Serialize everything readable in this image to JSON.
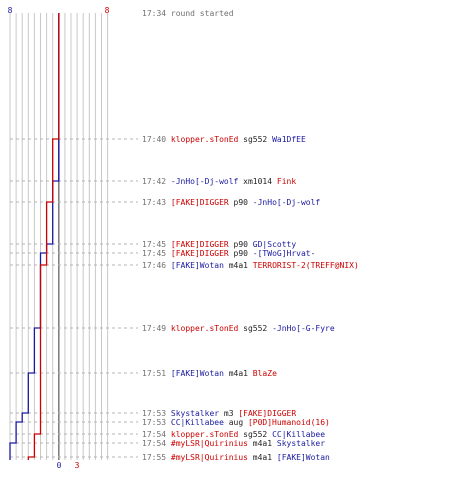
{
  "colors": {
    "blue_team": "#1a1aa0",
    "red_team": "#cc0000",
    "weapon_text": "#222222",
    "time_text": "#707070",
    "grid_minor": "#c8c8c8",
    "grid_major": "#808080",
    "dash_line": "#b4b4b4"
  },
  "scores": {
    "blue_start": "8",
    "red_start": "8",
    "blue_end": "0",
    "red_end": "3"
  },
  "chart_data": {
    "type": "step-line",
    "series": [
      {
        "team": "blue",
        "values": [
          8,
          8,
          8,
          7,
          7,
          6,
          5,
          5,
          4,
          3,
          2,
          1,
          1,
          0,
          0,
          0
        ]
      },
      {
        "team": "red",
        "values": [
          8,
          8,
          7,
          7,
          6,
          6,
          6,
          5,
          5,
          5,
          5,
          5,
          4,
          4,
          3,
          3
        ]
      }
    ]
  },
  "events": [
    {
      "time": "17:34",
      "parts": [
        {
          "text": "round started",
          "style": "gray"
        }
      ]
    },
    {
      "time": "17:40",
      "parts": [
        {
          "text": "klopper.sTonEd",
          "style": "red"
        },
        {
          "text": "sg552",
          "style": "black"
        },
        {
          "text": "Wa1DfEE",
          "style": "blue"
        }
      ]
    },
    {
      "time": "17:42",
      "parts": [
        {
          "text": "-JnHo[-Dj-wolf",
          "style": "blue"
        },
        {
          "text": "xm1014",
          "style": "black"
        },
        {
          "text": "Fink",
          "style": "red"
        }
      ]
    },
    {
      "time": "17:43",
      "parts": [
        {
          "text": "[FAKE]DIGGER",
          "style": "red"
        },
        {
          "text": "p90",
          "style": "black"
        },
        {
          "text": "-JnHo[-Dj-wolf",
          "style": "blue"
        }
      ]
    },
    {
      "time": "17:45",
      "parts": [
        {
          "text": "[FAKE]DIGGER",
          "style": "red"
        },
        {
          "text": "p90",
          "style": "black"
        },
        {
          "text": "GD|Scotty",
          "style": "blue"
        }
      ]
    },
    {
      "time": "17:45",
      "parts": [
        {
          "text": "[FAKE]DIGGER",
          "style": "red"
        },
        {
          "text": "p90",
          "style": "black"
        },
        {
          "text": "-[TWoG]Hrvat-",
          "style": "blue"
        }
      ]
    },
    {
      "time": "17:46",
      "parts": [
        {
          "text": "[FAKE]Wotan",
          "style": "blue"
        },
        {
          "text": "m4a1",
          "style": "black"
        },
        {
          "text": "TERRORIST-2(TREFF@NIX)",
          "style": "red"
        }
      ]
    },
    {
      "time": "17:49",
      "parts": [
        {
          "text": "klopper.sTonEd",
          "style": "red"
        },
        {
          "text": "sg552",
          "style": "black"
        },
        {
          "text": "-JnHo[-G-Fyre",
          "style": "blue"
        }
      ]
    },
    {
      "time": "17:51",
      "parts": [
        {
          "text": "[FAKE]Wotan",
          "style": "blue"
        },
        {
          "text": "m4a1",
          "style": "black"
        },
        {
          "text": "BlaZe",
          "style": "red"
        }
      ]
    },
    {
      "time": "17:53",
      "parts": [
        {
          "text": "Skystalker",
          "style": "blue"
        },
        {
          "text": "m3",
          "style": "black"
        },
        {
          "text": "[FAKE]DIGGER",
          "style": "red"
        }
      ]
    },
    {
      "time": "17:53",
      "parts": [
        {
          "text": "CC|Killabee",
          "style": "blue"
        },
        {
          "text": "aug",
          "style": "black"
        },
        {
          "text": "[P0D]Humanoid(16)",
          "style": "red"
        }
      ]
    },
    {
      "time": "17:54",
      "parts": [
        {
          "text": "klopper.sTonEd",
          "style": "red"
        },
        {
          "text": "sg552",
          "style": "black"
        },
        {
          "text": "CC|Killabee",
          "style": "blue"
        }
      ]
    },
    {
      "time": "17:54",
      "parts": [
        {
          "text": "#myLSR|Quirinius",
          "style": "red"
        },
        {
          "text": "m4a1",
          "style": "black"
        },
        {
          "text": "Skystalker",
          "style": "blue"
        }
      ]
    },
    {
      "time": "17:55",
      "parts": [
        {
          "text": "#myLSR|Quirinius",
          "style": "red"
        },
        {
          "text": "m4a1",
          "style": "black"
        },
        {
          "text": "[FAKE]Wotan",
          "style": "blue"
        }
      ]
    }
  ]
}
